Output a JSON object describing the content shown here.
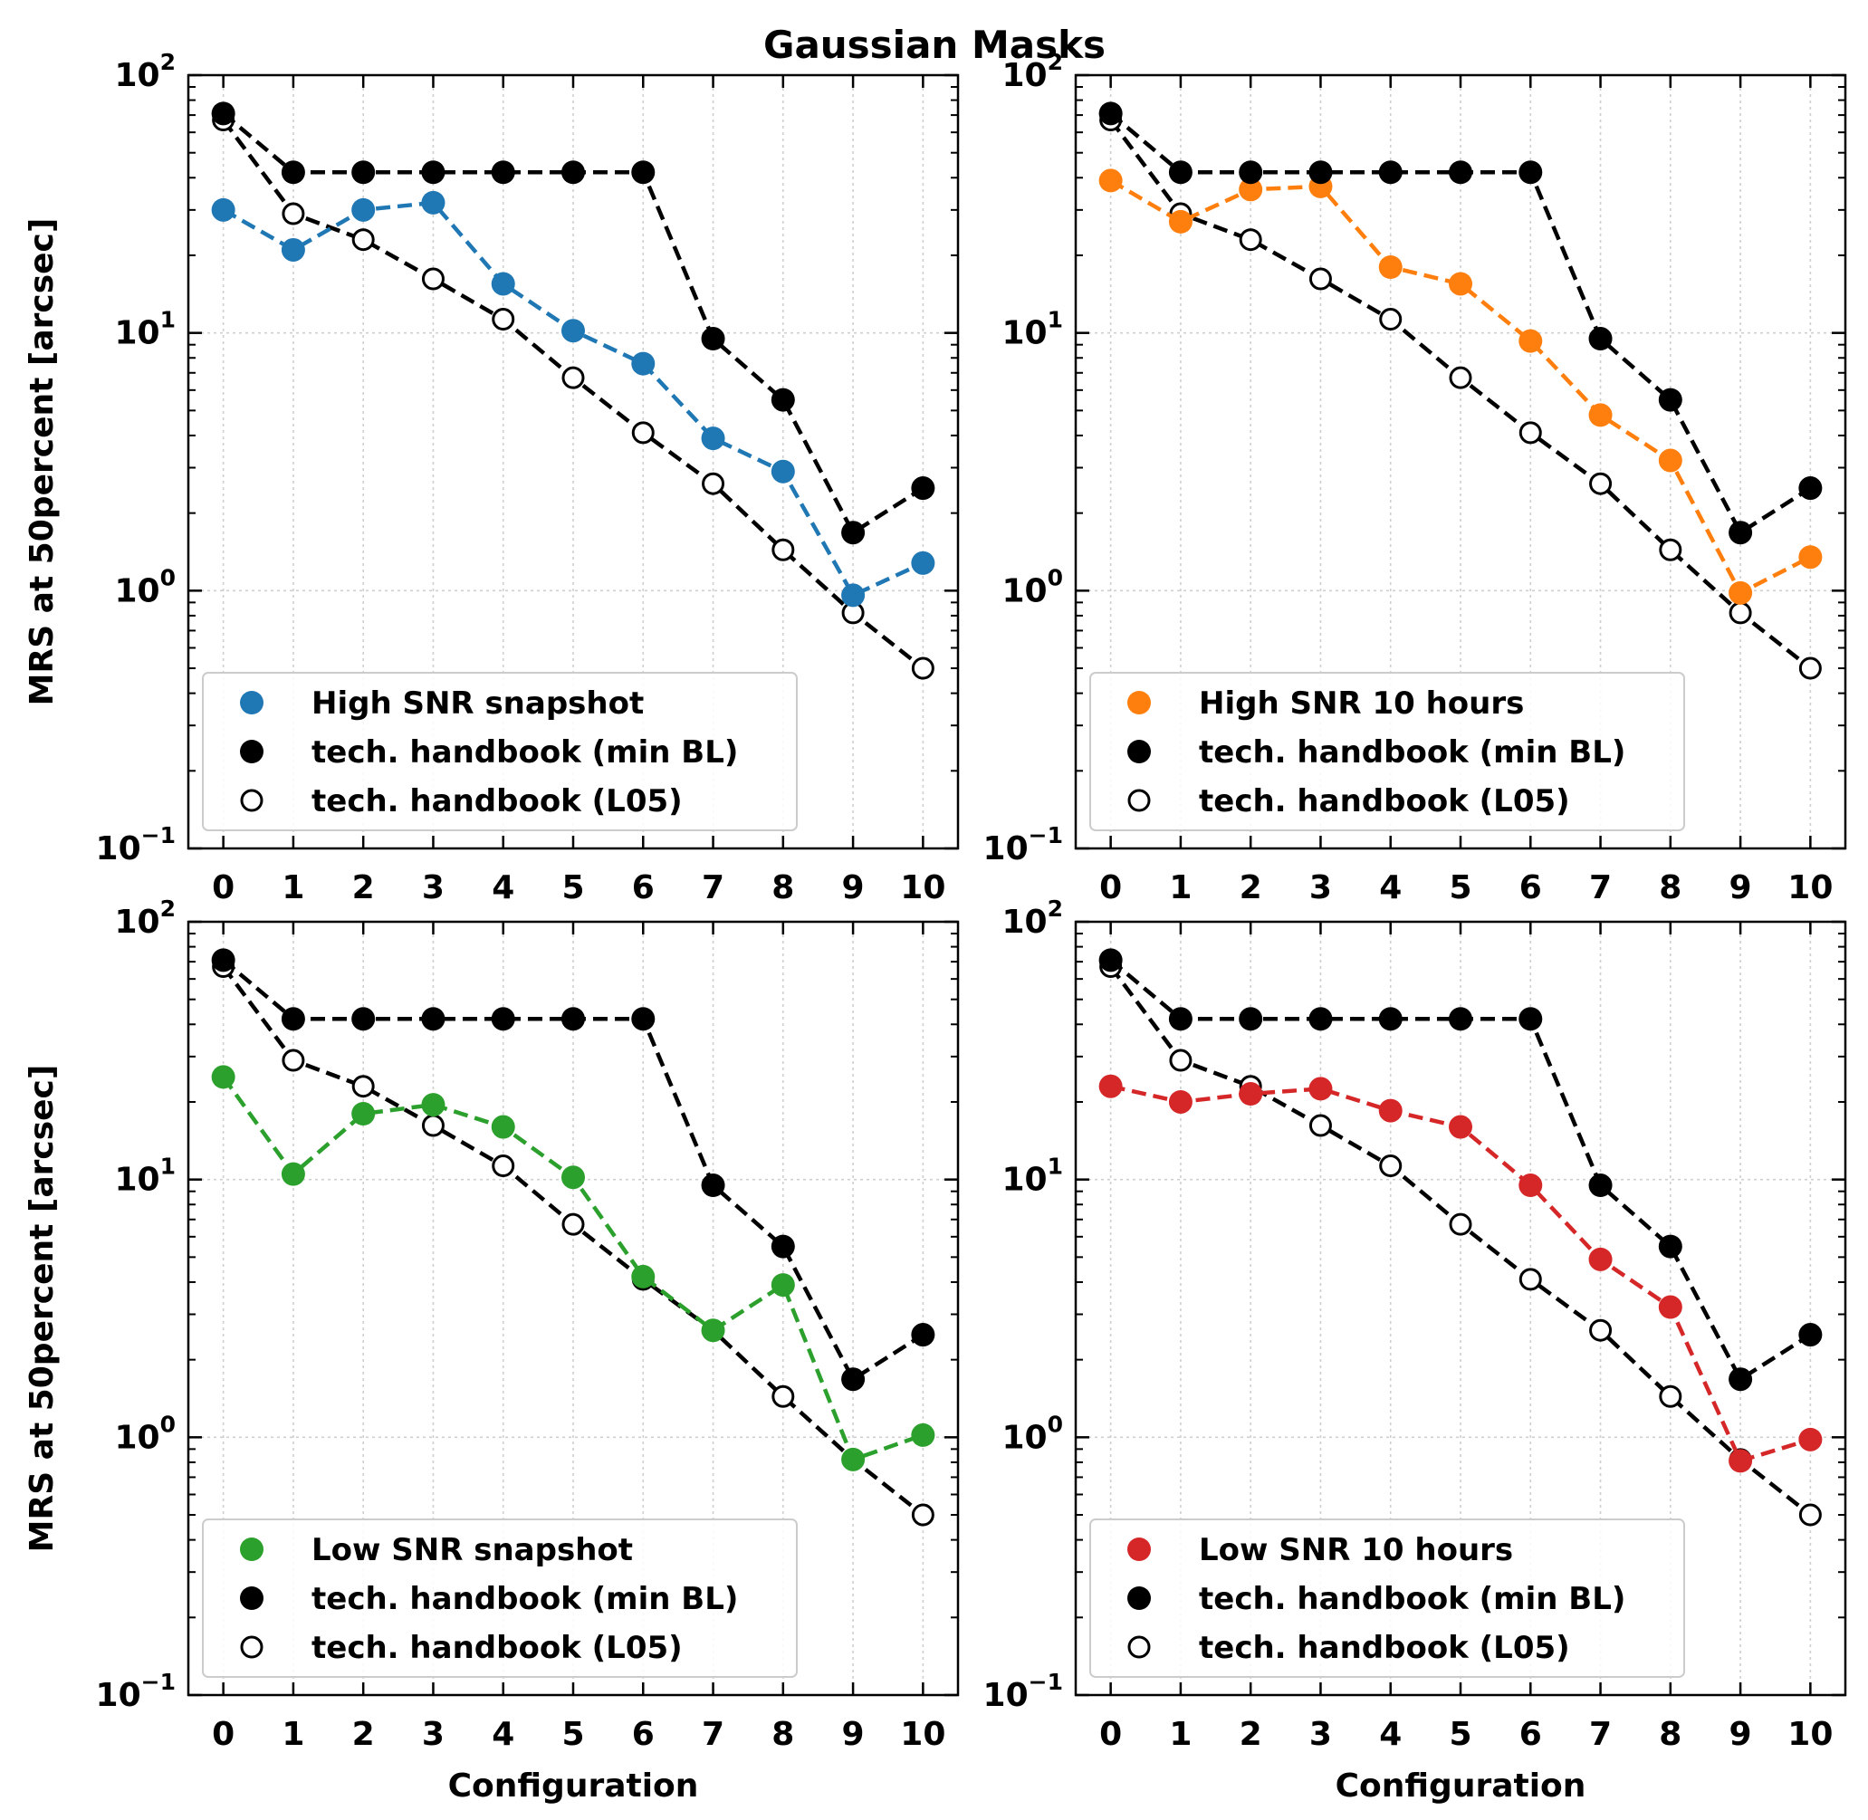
{
  "figure": {
    "title": "Gaussian Masks"
  },
  "chart_data": [
    {
      "type": "line",
      "yscale": "log",
      "ylim": [
        0.1,
        100
      ],
      "xlim": [
        -0.5,
        10.5
      ],
      "grid": true,
      "legend_position": "lower-left",
      "xlabel": "",
      "ylabel": "MRS at 50percent [arcsec]",
      "y_tick_labels": [
        "10",
        "10",
        "10",
        "10"
      ],
      "y_tick_exponents": [
        "−1",
        "0",
        "1",
        "2"
      ],
      "x_tick_labels": [
        "0",
        "1",
        "2",
        "3",
        "4",
        "5",
        "6",
        "7",
        "8",
        "9",
        "10"
      ],
      "x": [
        0,
        1,
        2,
        3,
        4,
        5,
        6,
        7,
        8,
        9,
        10
      ],
      "series": [
        {
          "name": "High SNR snapshot",
          "color": "#1f77b4",
          "marker": "filled",
          "values": [
            30,
            21,
            30,
            32,
            15.5,
            10.2,
            7.6,
            3.9,
            2.9,
            0.96,
            1.28
          ]
        },
        {
          "name": "tech. handbook (min BL)",
          "color": "#000000",
          "marker": "filled",
          "values": [
            71,
            42,
            42,
            42,
            42,
            42,
            42,
            9.5,
            5.5,
            1.68,
            2.5
          ]
        },
        {
          "name": "tech. handbook (L05)",
          "color": "#000000",
          "marker": "open",
          "values": [
            67,
            29,
            23,
            16.2,
            11.3,
            6.7,
            4.1,
            2.6,
            1.44,
            0.82,
            0.5
          ]
        }
      ]
    },
    {
      "type": "line",
      "yscale": "log",
      "ylim": [
        0.1,
        100
      ],
      "xlim": [
        -0.5,
        10.5
      ],
      "grid": true,
      "legend_position": "lower-left",
      "xlabel": "",
      "ylabel": "",
      "y_tick_labels": [
        "10",
        "10",
        "10",
        "10"
      ],
      "y_tick_exponents": [
        "−1",
        "0",
        "1",
        "2"
      ],
      "x_tick_labels": [
        "0",
        "1",
        "2",
        "3",
        "4",
        "5",
        "6",
        "7",
        "8",
        "9",
        "10"
      ],
      "x": [
        0,
        1,
        2,
        3,
        4,
        5,
        6,
        7,
        8,
        9,
        10
      ],
      "series": [
        {
          "name": "High SNR 10 hours",
          "color": "#ff7f0e",
          "marker": "filled",
          "values": [
            39,
            27,
            36,
            37,
            18,
            15.5,
            9.3,
            4.8,
            3.2,
            0.98,
            1.35
          ]
        },
        {
          "name": "tech. handbook (min BL)",
          "color": "#000000",
          "marker": "filled",
          "values": [
            71,
            42,
            42,
            42,
            42,
            42,
            42,
            9.5,
            5.5,
            1.68,
            2.5
          ]
        },
        {
          "name": "tech. handbook (L05)",
          "color": "#000000",
          "marker": "open",
          "values": [
            67,
            29,
            23,
            16.2,
            11.3,
            6.7,
            4.1,
            2.6,
            1.44,
            0.82,
            0.5
          ]
        }
      ]
    },
    {
      "type": "line",
      "yscale": "log",
      "ylim": [
        0.1,
        100
      ],
      "xlim": [
        -0.5,
        10.5
      ],
      "grid": true,
      "legend_position": "lower-left",
      "xlabel": "Configuration",
      "ylabel": "MRS at 50percent [arcsec]",
      "y_tick_labels": [
        "10",
        "10",
        "10",
        "10"
      ],
      "y_tick_exponents": [
        "−1",
        "0",
        "1",
        "2"
      ],
      "x_tick_labels": [
        "0",
        "1",
        "2",
        "3",
        "4",
        "5",
        "6",
        "7",
        "8",
        "9",
        "10"
      ],
      "x": [
        0,
        1,
        2,
        3,
        4,
        5,
        6,
        7,
        8,
        9,
        10
      ],
      "series": [
        {
          "name": "Low SNR snapshot",
          "color": "#2ca02c",
          "marker": "filled",
          "values": [
            25,
            10.5,
            18,
            19.5,
            16,
            10.2,
            4.2,
            2.6,
            3.9,
            0.82,
            1.02
          ]
        },
        {
          "name": "tech. handbook (min BL)",
          "color": "#000000",
          "marker": "filled",
          "values": [
            71,
            42,
            42,
            42,
            42,
            42,
            42,
            9.5,
            5.5,
            1.68,
            2.5
          ]
        },
        {
          "name": "tech. handbook (L05)",
          "color": "#000000",
          "marker": "open",
          "values": [
            67,
            29,
            23,
            16.2,
            11.3,
            6.7,
            4.1,
            2.6,
            1.44,
            0.82,
            0.5
          ]
        }
      ]
    },
    {
      "type": "line",
      "yscale": "log",
      "ylim": [
        0.1,
        100
      ],
      "xlim": [
        -0.5,
        10.5
      ],
      "grid": true,
      "legend_position": "lower-left",
      "xlabel": "Configuration",
      "ylabel": "",
      "y_tick_labels": [
        "10",
        "10",
        "10",
        "10"
      ],
      "y_tick_exponents": [
        "−1",
        "0",
        "1",
        "2"
      ],
      "x_tick_labels": [
        "0",
        "1",
        "2",
        "3",
        "4",
        "5",
        "6",
        "7",
        "8",
        "9",
        "10"
      ],
      "x": [
        0,
        1,
        2,
        3,
        4,
        5,
        6,
        7,
        8,
        9,
        10
      ],
      "series": [
        {
          "name": "Low SNR 10 hours",
          "color": "#d62728",
          "marker": "filled",
          "values": [
            23,
            20,
            21.5,
            22.5,
            18.5,
            16,
            9.5,
            4.9,
            3.2,
            0.81,
            0.98
          ]
        },
        {
          "name": "tech. handbook (min BL)",
          "color": "#000000",
          "marker": "filled",
          "values": [
            71,
            42,
            42,
            42,
            42,
            42,
            42,
            9.5,
            5.5,
            1.68,
            2.5
          ]
        },
        {
          "name": "tech. handbook (L05)",
          "color": "#000000",
          "marker": "open",
          "values": [
            67,
            29,
            23,
            16.2,
            11.3,
            6.7,
            4.1,
            2.6,
            1.44,
            0.82,
            0.5
          ]
        }
      ]
    }
  ]
}
